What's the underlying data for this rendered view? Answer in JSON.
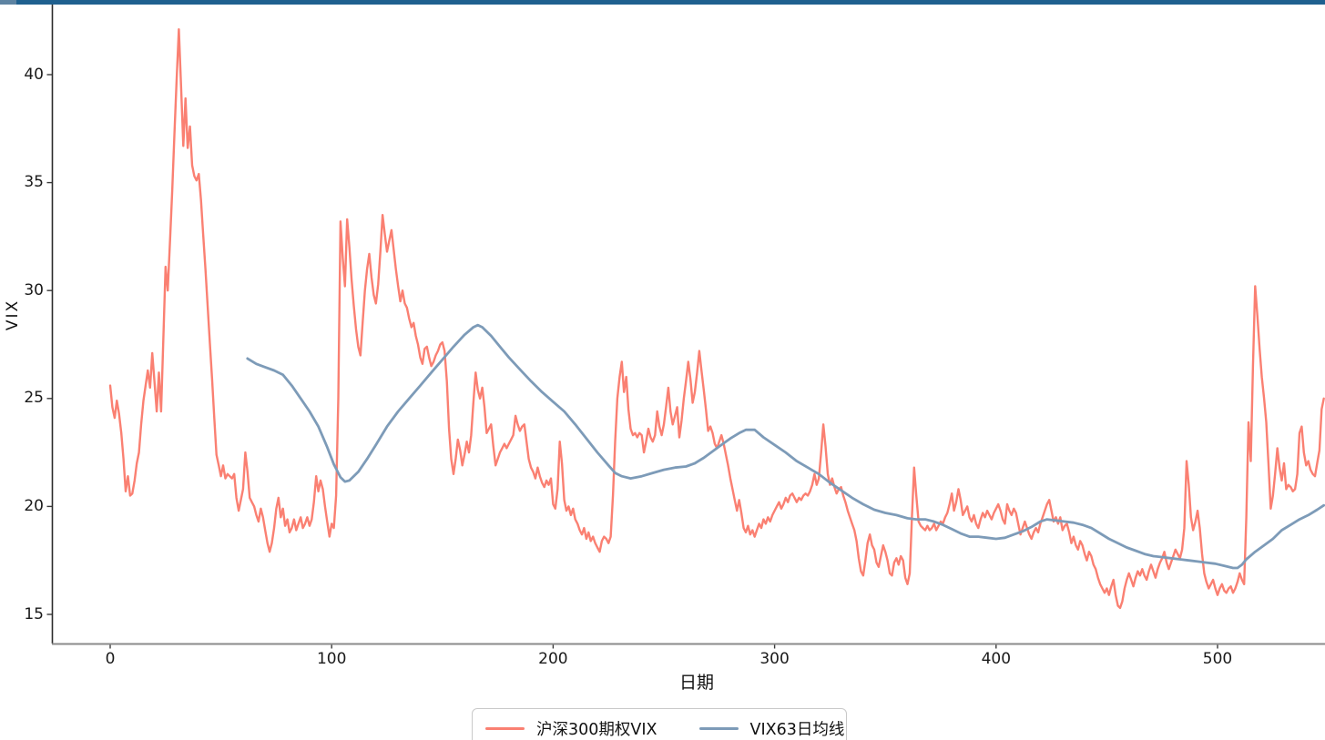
{
  "window": {
    "top_bar_color": "#1f608f",
    "top_bar_accent_color": "#5d83a2"
  },
  "axes": {
    "spine_color_left": "#2b2b2b",
    "spine_color_bottom": "#8a8a8a",
    "tick_color": "#3a3a3a",
    "label_color": "#1a1a1a"
  },
  "legend": {
    "items": [
      {
        "label": "沪深300期权VIX",
        "color": "#fa8072"
      },
      {
        "label": "VIX63日均线",
        "color": "#7d9bb8"
      }
    ]
  },
  "chart_data": {
    "type": "line",
    "title": "",
    "xlabel": "日期",
    "ylabel": "VIX",
    "x_ticks": [
      0,
      100,
      200,
      300,
      400,
      500
    ],
    "y_ticks": [
      15,
      20,
      25,
      30,
      35,
      40
    ],
    "xlim": [
      -26,
      549
    ],
    "ylim": [
      13.6,
      43.3
    ],
    "grid": false,
    "legend_position": "bottom-center",
    "series": [
      {
        "name": "沪深300期权VIX",
        "color": "#fa8072",
        "line_width": 2.4,
        "x_start": 0,
        "x_step": 1,
        "values": [
          25.6,
          24.6,
          24.1,
          24.9,
          24.3,
          23.4,
          22.2,
          20.7,
          21.4,
          20.5,
          20.6,
          21.2,
          22.0,
          22.5,
          23.8,
          24.9,
          25.6,
          26.3,
          25.5,
          27.1,
          25.8,
          24.4,
          26.2,
          24.4,
          27.8,
          31.1,
          30.0,
          32.3,
          34.6,
          37.2,
          39.8,
          42.1,
          39.5,
          36.7,
          38.9,
          36.6,
          37.6,
          35.8,
          35.3,
          35.1,
          35.4,
          34.2,
          32.6,
          31.0,
          29.3,
          27.6,
          25.9,
          24.1,
          22.4,
          21.9,
          21.4,
          21.9,
          21.3,
          21.5,
          21.4,
          21.3,
          21.5,
          20.4,
          19.8,
          20.3,
          20.8,
          22.5,
          21.6,
          20.4,
          20.2,
          20.0,
          19.6,
          19.3,
          19.9,
          19.5,
          18.9,
          18.3,
          17.9,
          18.3,
          19.0,
          19.9,
          20.4,
          19.5,
          19.9,
          19.1,
          19.4,
          18.8,
          19.0,
          19.4,
          18.9,
          19.2,
          19.5,
          19.0,
          19.2,
          19.5,
          19.1,
          19.4,
          20.2,
          21.4,
          20.7,
          21.2,
          20.8,
          20.0,
          19.3,
          18.6,
          19.2,
          19.0,
          20.5,
          25.0,
          33.2,
          31.5,
          30.2,
          33.3,
          32.0,
          30.5,
          29.3,
          28.2,
          27.4,
          27.0,
          28.5,
          30.0,
          31.0,
          31.7,
          30.6,
          29.8,
          29.4,
          30.3,
          31.8,
          33.5,
          32.6,
          31.8,
          32.3,
          32.8,
          31.9,
          31.0,
          30.2,
          29.5,
          30.0,
          29.4,
          29.2,
          28.7,
          28.3,
          28.5,
          27.9,
          27.5,
          26.9,
          26.6,
          27.3,
          27.4,
          26.9,
          26.5,
          26.7,
          27.0,
          27.2,
          27.5,
          27.6,
          27.2,
          25.8,
          23.6,
          22.2,
          21.5,
          22.2,
          23.1,
          22.6,
          21.9,
          22.4,
          23.0,
          22.5,
          23.3,
          24.8,
          26.2,
          25.4,
          25.0,
          25.5,
          24.6,
          23.4,
          23.6,
          23.8,
          22.8,
          21.9,
          22.2,
          22.5,
          22.7,
          22.9,
          22.7,
          22.9,
          23.1,
          23.3,
          24.2,
          23.8,
          23.5,
          23.7,
          23.8,
          23.0,
          22.2,
          21.8,
          21.6,
          21.3,
          21.8,
          21.4,
          21.1,
          20.9,
          21.2,
          21.0,
          21.3,
          20.1,
          19.9,
          20.8,
          23.0,
          22.0,
          20.3,
          19.8,
          20.0,
          19.6,
          19.9,
          19.4,
          19.2,
          18.9,
          18.7,
          19.0,
          18.5,
          18.8,
          18.4,
          18.6,
          18.3,
          18.1,
          17.9,
          18.4,
          18.6,
          18.5,
          18.3,
          18.6,
          20.5,
          23.0,
          25.0,
          26.0,
          26.7,
          25.3,
          26.0,
          24.5,
          23.6,
          23.3,
          23.4,
          23.2,
          23.4,
          23.3,
          22.5,
          23.0,
          23.6,
          23.2,
          23.0,
          23.3,
          24.4,
          23.7,
          23.3,
          23.8,
          24.6,
          25.5,
          24.4,
          23.8,
          24.2,
          24.6,
          23.2,
          24.0,
          25.0,
          25.8,
          26.7,
          25.9,
          24.8,
          25.3,
          26.2,
          27.2,
          26.3,
          25.4,
          24.5,
          23.5,
          23.7,
          23.4,
          22.9,
          22.7,
          23.0,
          23.3,
          22.9,
          22.4,
          21.9,
          21.3,
          20.8,
          20.3,
          19.8,
          20.3,
          19.7,
          19.0,
          18.8,
          19.1,
          18.7,
          18.9,
          18.6,
          18.9,
          19.2,
          19.0,
          19.4,
          19.2,
          19.5,
          19.3,
          19.6,
          19.8,
          20.0,
          20.2,
          19.9,
          20.1,
          20.4,
          20.2,
          20.5,
          20.6,
          20.4,
          20.2,
          20.4,
          20.3,
          20.5,
          20.6,
          20.5,
          20.7,
          21.0,
          21.5,
          21.0,
          21.3,
          22.5,
          23.8,
          22.8,
          21.5,
          21.0,
          21.3,
          20.9,
          20.6,
          20.8,
          20.9,
          20.5,
          20.2,
          19.8,
          19.5,
          19.2,
          18.9,
          18.4,
          17.6,
          17.0,
          16.8,
          17.5,
          18.3,
          18.7,
          18.2,
          18.0,
          17.4,
          17.2,
          17.7,
          18.2,
          17.9,
          17.5,
          16.9,
          16.8,
          17.4,
          17.6,
          17.3,
          17.7,
          17.5,
          16.7,
          16.4,
          16.9,
          19.5,
          21.8,
          20.5,
          19.3,
          19.1,
          19.0,
          18.9,
          19.1,
          18.9,
          19.0,
          19.2,
          18.9,
          19.1,
          19.3,
          19.2,
          19.5,
          19.7,
          20.1,
          20.6,
          19.8,
          20.2,
          20.8,
          20.3,
          19.6,
          19.8,
          20.0,
          19.5,
          19.3,
          19.6,
          19.2,
          19.0,
          19.4,
          19.7,
          19.5,
          19.8,
          19.6,
          19.4,
          19.7,
          19.9,
          20.1,
          19.8,
          19.4,
          19.2,
          20.1,
          19.8,
          19.6,
          19.9,
          19.7,
          19.2,
          18.7,
          19.0,
          19.3,
          19.0,
          18.7,
          18.5,
          18.8,
          19.0,
          18.8,
          19.2,
          19.5,
          19.8,
          20.1,
          20.3,
          19.8,
          19.3,
          19.5,
          19.2,
          19.5,
          18.9,
          19.1,
          19.2,
          18.8,
          18.3,
          18.6,
          18.2,
          18.0,
          18.4,
          18.2,
          17.8,
          17.5,
          17.9,
          17.7,
          17.3,
          17.1,
          16.7,
          16.4,
          16.2,
          16.0,
          16.2,
          15.9,
          16.3,
          16.6,
          15.9,
          15.4,
          15.3,
          15.6,
          16.2,
          16.6,
          16.9,
          16.6,
          16.3,
          16.7,
          17.0,
          16.8,
          17.1,
          16.8,
          16.6,
          17.0,
          17.3,
          17.0,
          16.7,
          17.1,
          17.4,
          17.6,
          17.9,
          17.4,
          17.1,
          17.4,
          17.7,
          18.0,
          17.8,
          17.6,
          18.0,
          19.0,
          22.1,
          21.0,
          19.5,
          18.9,
          19.3,
          19.8,
          19.0,
          17.8,
          16.9,
          16.5,
          16.2,
          16.4,
          16.6,
          16.2,
          15.9,
          16.2,
          16.4,
          16.1,
          16.0,
          16.2,
          16.3,
          16.0,
          16.2,
          16.5,
          16.9,
          16.6,
          16.4,
          19.5,
          23.9,
          22.1,
          26.5,
          30.2,
          28.8,
          27.3,
          26.0,
          25.0,
          23.9,
          22.0,
          19.9,
          20.5,
          21.5,
          22.7,
          21.8,
          21.2,
          22.0,
          20.8,
          21.0,
          20.9,
          20.7,
          20.8,
          21.5,
          23.4,
          23.7,
          22.5,
          21.9,
          22.1,
          21.7,
          21.5,
          21.4,
          22.0,
          22.6,
          24.5,
          25.0
        ]
      },
      {
        "name": "VIX63日均线",
        "color": "#7d9bb8",
        "line_width": 2.8,
        "points": [
          [
            62,
            26.85
          ],
          [
            66,
            26.6
          ],
          [
            70,
            26.45
          ],
          [
            74,
            26.3
          ],
          [
            78,
            26.1
          ],
          [
            82,
            25.6
          ],
          [
            86,
            25.0
          ],
          [
            90,
            24.4
          ],
          [
            94,
            23.7
          ],
          [
            98,
            22.75
          ],
          [
            101,
            21.95
          ],
          [
            104,
            21.35
          ],
          [
            106,
            21.15
          ],
          [
            108,
            21.2
          ],
          [
            112,
            21.6
          ],
          [
            116,
            22.2
          ],
          [
            120,
            22.85
          ],
          [
            125,
            23.7
          ],
          [
            130,
            24.4
          ],
          [
            135,
            25.0
          ],
          [
            140,
            25.6
          ],
          [
            145,
            26.2
          ],
          [
            150,
            26.8
          ],
          [
            155,
            27.4
          ],
          [
            160,
            27.95
          ],
          [
            164,
            28.3
          ],
          [
            166,
            28.4
          ],
          [
            168,
            28.3
          ],
          [
            172,
            27.9
          ],
          [
            176,
            27.4
          ],
          [
            180,
            26.9
          ],
          [
            185,
            26.35
          ],
          [
            190,
            25.8
          ],
          [
            195,
            25.3
          ],
          [
            200,
            24.85
          ],
          [
            205,
            24.4
          ],
          [
            210,
            23.8
          ],
          [
            215,
            23.15
          ],
          [
            220,
            22.5
          ],
          [
            225,
            21.9
          ],
          [
            228,
            21.55
          ],
          [
            231,
            21.4
          ],
          [
            235,
            21.3
          ],
          [
            240,
            21.4
          ],
          [
            245,
            21.55
          ],
          [
            250,
            21.7
          ],
          [
            255,
            21.8
          ],
          [
            260,
            21.85
          ],
          [
            264,
            22.0
          ],
          [
            268,
            22.25
          ],
          [
            272,
            22.55
          ],
          [
            276,
            22.85
          ],
          [
            280,
            23.15
          ],
          [
            284,
            23.4
          ],
          [
            287,
            23.55
          ],
          [
            291,
            23.55
          ],
          [
            295,
            23.2
          ],
          [
            300,
            22.85
          ],
          [
            305,
            22.5
          ],
          [
            310,
            22.1
          ],
          [
            315,
            21.8
          ],
          [
            320,
            21.5
          ],
          [
            325,
            21.1
          ],
          [
            330,
            20.75
          ],
          [
            335,
            20.4
          ],
          [
            340,
            20.1
          ],
          [
            345,
            19.85
          ],
          [
            350,
            19.7
          ],
          [
            355,
            19.6
          ],
          [
            360,
            19.45
          ],
          [
            364,
            19.4
          ],
          [
            368,
            19.4
          ],
          [
            372,
            19.3
          ],
          [
            376,
            19.15
          ],
          [
            380,
            18.95
          ],
          [
            384,
            18.75
          ],
          [
            388,
            18.6
          ],
          [
            392,
            18.6
          ],
          [
            396,
            18.55
          ],
          [
            400,
            18.5
          ],
          [
            404,
            18.55
          ],
          [
            408,
            18.7
          ],
          [
            412,
            18.85
          ],
          [
            416,
            19.05
          ],
          [
            420,
            19.3
          ],
          [
            423,
            19.4
          ],
          [
            427,
            19.35
          ],
          [
            431,
            19.3
          ],
          [
            435,
            19.25
          ],
          [
            439,
            19.15
          ],
          [
            443,
            19.0
          ],
          [
            447,
            18.75
          ],
          [
            451,
            18.5
          ],
          [
            455,
            18.3
          ],
          [
            459,
            18.1
          ],
          [
            463,
            17.95
          ],
          [
            467,
            17.8
          ],
          [
            471,
            17.7
          ],
          [
            475,
            17.65
          ],
          [
            479,
            17.6
          ],
          [
            483,
            17.55
          ],
          [
            487,
            17.5
          ],
          [
            491,
            17.45
          ],
          [
            495,
            17.4
          ],
          [
            499,
            17.35
          ],
          [
            503,
            17.25
          ],
          [
            507,
            17.15
          ],
          [
            509,
            17.15
          ],
          [
            511,
            17.3
          ],
          [
            513,
            17.55
          ],
          [
            517,
            17.9
          ],
          [
            521,
            18.2
          ],
          [
            525,
            18.5
          ],
          [
            529,
            18.9
          ],
          [
            533,
            19.15
          ],
          [
            537,
            19.4
          ],
          [
            541,
            19.6
          ],
          [
            545,
            19.85
          ],
          [
            548,
            20.05
          ]
        ]
      }
    ]
  }
}
